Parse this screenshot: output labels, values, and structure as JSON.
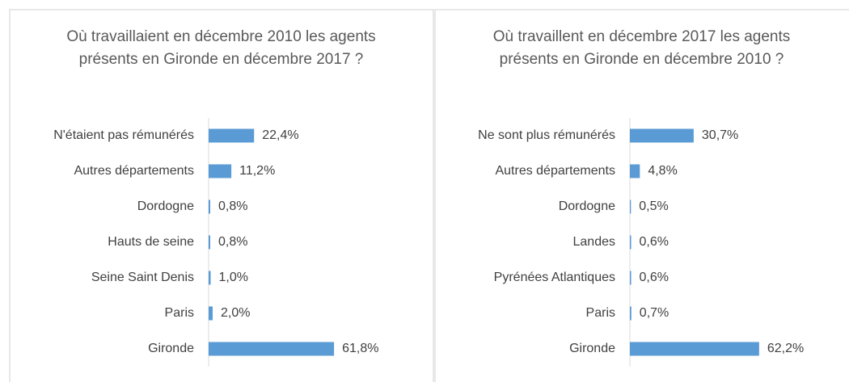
{
  "chart_data": [
    {
      "type": "bar",
      "orientation": "horizontal",
      "title": "Où travaillaient en décembre 2010 les agents présents en Gironde en décembre 2017 ?",
      "categories": [
        "N'étaient pas rémunérés",
        "Autres départements",
        "Dordogne",
        "Hauts de seine",
        "Seine Saint Denis",
        "Paris",
        "Gironde"
      ],
      "values": [
        22.4,
        11.2,
        0.8,
        0.8,
        1.0,
        2.0,
        61.8
      ],
      "value_labels": [
        "22,4%",
        "11,2%",
        "0,8%",
        "0,8%",
        "1,0%",
        "2,0%",
        "61,8%"
      ],
      "color": "#5b9bd5"
    },
    {
      "type": "bar",
      "orientation": "horizontal",
      "title": "Où travaillent en décembre 2017 les agents présents en Gironde en décembre 2010 ?",
      "categories": [
        "Ne sont plus rémunérés",
        "Autres départements",
        "Dordogne",
        "Landes",
        "Pyrénées Atlantiques",
        "Paris",
        "Gironde"
      ],
      "values": [
        30.7,
        4.8,
        0.5,
        0.6,
        0.6,
        0.7,
        62.2
      ],
      "value_labels": [
        "30,7%",
        "4,8%",
        "0,5%",
        "0,6%",
        "0,6%",
        "0,7%",
        "62,2%"
      ],
      "color": "#5b9bd5"
    }
  ]
}
